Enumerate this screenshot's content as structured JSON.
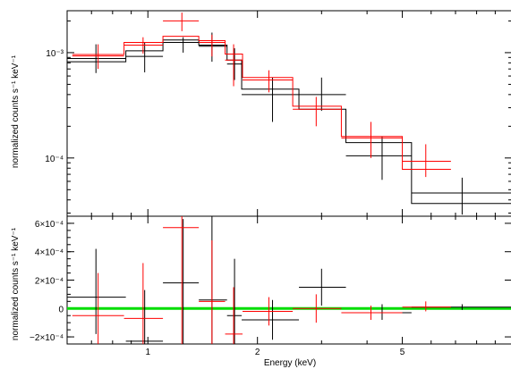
{
  "chart_data": [
    {
      "type": "scatter",
      "panel": "spectrum",
      "ylabel": "normalized counts s⁻¹ keV⁻¹",
      "xscale": "log",
      "yscale": "log",
      "xlim": [
        0.6,
        10.0
      ],
      "ylim": [
        2.8e-05,
        0.0025
      ],
      "y_ticks": [
        {
          "value": 0.001,
          "label": "10⁻³"
        },
        {
          "value": 0.0001,
          "label": "10⁻⁴"
        }
      ],
      "colors": {
        "series_1": "#000000",
        "series_2": "#ff0000"
      },
      "series": [
        {
          "points": [
            {
              "x": 0.72,
              "xlo": 0.6,
              "xhi": 0.87,
              "y": 0.00088,
              "ylo": 0.00064,
              "yhi": 0.0012
            },
            {
              "x": 0.98,
              "xlo": 0.87,
              "xhi": 1.1,
              "y": 0.00092,
              "ylo": 0.00065,
              "yhi": 0.00125
            },
            {
              "x": 1.25,
              "xlo": 1.1,
              "xhi": 1.38,
              "y": 0.00125,
              "ylo": 0.001,
              "yhi": 0.0014
            },
            {
              "x": 1.5,
              "xlo": 1.38,
              "xhi": 1.65,
              "y": 0.00115,
              "ylo": 0.00082,
              "yhi": 0.00155
            },
            {
              "x": 1.73,
              "xlo": 1.65,
              "xhi": 1.81,
              "y": 0.00078,
              "ylo": 0.00055,
              "yhi": 0.0011
            },
            {
              "x": 2.2,
              "xlo": 1.81,
              "xhi": 2.6,
              "y": 0.0004,
              "ylo": 0.00022,
              "yhi": 0.00058
            },
            {
              "x": 3.0,
              "xlo": 2.6,
              "xhi": 3.5,
              "y": 0.0004,
              "ylo": 0.00028,
              "yhi": 0.00058
            },
            {
              "x": 4.4,
              "xlo": 3.5,
              "xhi": 5.3,
              "y": 0.000105,
              "ylo": 6.2e-05,
              "yhi": 0.00016
            },
            {
              "x": 7.3,
              "xlo": 5.3,
              "xhi": 10.0,
              "y": 4.65e-05,
              "ylo": 2.9e-05,
              "yhi": 6.5e-05
            }
          ],
          "model_steps": [
            {
              "xlo": 0.6,
              "xhi": 0.87,
              "y": 0.00082
            },
            {
              "xlo": 0.87,
              "xhi": 1.1,
              "y": 0.00104
            },
            {
              "xlo": 1.1,
              "xhi": 1.38,
              "y": 0.00132
            },
            {
              "xlo": 1.38,
              "xhi": 1.65,
              "y": 0.00118
            },
            {
              "xlo": 1.65,
              "xhi": 1.81,
              "y": 0.00085
            },
            {
              "xlo": 1.81,
              "xhi": 2.6,
              "y": 0.00045
            },
            {
              "xlo": 2.6,
              "xhi": 3.5,
              "y": 0.00029
            },
            {
              "xlo": 3.5,
              "xhi": 5.3,
              "y": 0.00014
            },
            {
              "xlo": 5.3,
              "xhi": 10.0,
              "y": 3.7e-05
            }
          ]
        },
        {
          "points": [
            {
              "x": 0.73,
              "xlo": 0.62,
              "xhi": 0.86,
              "y": 0.00093,
              "ylo": 0.0007,
              "yhi": 0.0012
            },
            {
              "x": 0.97,
              "xlo": 0.86,
              "xhi": 1.1,
              "y": 0.00118,
              "ylo": 0.00098,
              "yhi": 0.0014
            },
            {
              "x": 1.24,
              "xlo": 1.1,
              "xhi": 1.38,
              "y": 0.002,
              "ylo": 0.0016,
              "yhi": 0.0024
            },
            {
              "x": 1.5,
              "xlo": 1.38,
              "xhi": 1.63,
              "y": 0.00125,
              "ylo": 0.00092,
              "yhi": 0.00148
            },
            {
              "x": 1.72,
              "xlo": 1.63,
              "xhi": 1.82,
              "y": 0.00085,
              "ylo": 0.00048,
              "yhi": 0.0012
            },
            {
              "x": 2.15,
              "xlo": 1.82,
              "xhi": 2.5,
              "y": 0.00055,
              "ylo": 0.00042,
              "yhi": 0.00068
            },
            {
              "x": 2.9,
              "xlo": 2.5,
              "xhi": 3.4,
              "y": 0.00029,
              "ylo": 0.0002,
              "yhi": 0.00038
            },
            {
              "x": 4.1,
              "xlo": 3.4,
              "xhi": 5.0,
              "y": 0.000155,
              "ylo": 0.0001,
              "yhi": 0.00022
            },
            {
              "x": 5.8,
              "xlo": 5.0,
              "xhi": 6.8,
              "y": 9.3e-05,
              "ylo": 6.6e-05,
              "yhi": 0.000135
            }
          ],
          "model_steps": [
            {
              "xlo": 0.62,
              "xhi": 0.86,
              "y": 0.00096
            },
            {
              "xlo": 0.86,
              "xhi": 1.1,
              "y": 0.00125
            },
            {
              "xlo": 1.1,
              "xhi": 1.38,
              "y": 0.00143
            },
            {
              "xlo": 1.38,
              "xhi": 1.63,
              "y": 0.0013
            },
            {
              "xlo": 1.63,
              "xhi": 1.82,
              "y": 0.00097
            },
            {
              "xlo": 1.82,
              "xhi": 2.5,
              "y": 0.00058
            },
            {
              "xlo": 2.5,
              "xhi": 3.4,
              "y": 0.00031
            },
            {
              "xlo": 3.4,
              "xhi": 5.0,
              "y": 0.00016
            },
            {
              "xlo": 5.0,
              "xhi": 6.8,
              "y": 7.8e-05
            }
          ]
        }
      ]
    },
    {
      "type": "scatter",
      "panel": "residuals",
      "xlabel": "Energy (keV)",
      "ylabel": "normalized counts s⁻¹ keV⁻¹",
      "xscale": "log",
      "yscale": "linear",
      "xlim": [
        0.6,
        10.0
      ],
      "ylim": [
        -0.00025,
        0.00065
      ],
      "x_ticks": [
        {
          "value": 1,
          "label": "1"
        },
        {
          "value": 2,
          "label": "2"
        },
        {
          "value": 5,
          "label": "5"
        }
      ],
      "y_ticks": [
        {
          "value": 0.0006,
          "label": "6×10⁻⁴"
        },
        {
          "value": 0.0004,
          "label": "4×10⁻⁴"
        },
        {
          "value": 0.0002,
          "label": "2×10⁻⁴"
        },
        {
          "value": 0,
          "label": "0"
        },
        {
          "value": -0.0002,
          "label": "−2×10⁻⁴"
        }
      ],
      "zero_line_color": "#00dd00",
      "colors": {
        "series_1": "#000000",
        "series_2": "#ff0000"
      },
      "series": [
        {
          "points": [
            {
              "x": 0.72,
              "xlo": 0.6,
              "xhi": 0.87,
              "y": 8e-05,
              "ylo": -0.00018,
              "yhi": 0.00042
            },
            {
              "x": 0.98,
              "xlo": 0.87,
              "xhi": 1.1,
              "y": -0.00023,
              "ylo": -0.00025,
              "yhi": 0.00013
            },
            {
              "x": 1.25,
              "xlo": 1.1,
              "xhi": 1.38,
              "y": 0.00018,
              "ylo": -0.00025,
              "yhi": 0.00063
            },
            {
              "x": 1.5,
              "xlo": 1.38,
              "xhi": 1.65,
              "y": 6e-05,
              "ylo": -0.00025,
              "yhi": 0.00065
            },
            {
              "x": 1.73,
              "xlo": 1.65,
              "xhi": 1.81,
              "y": -5e-05,
              "ylo": -0.00025,
              "yhi": 0.00035
            },
            {
              "x": 2.2,
              "xlo": 1.81,
              "xhi": 2.6,
              "y": -8e-05,
              "ylo": -0.00022,
              "yhi": 6e-05
            },
            {
              "x": 3.0,
              "xlo": 2.6,
              "xhi": 3.5,
              "y": 0.00015,
              "ylo": 2e-05,
              "yhi": 0.00028
            },
            {
              "x": 4.4,
              "xlo": 3.5,
              "xhi": 5.3,
              "y": -3e-05,
              "ylo": -8e-05,
              "yhi": 3e-05
            },
            {
              "x": 7.3,
              "xlo": 5.3,
              "xhi": 10.0,
              "y": 1e-05,
              "ylo": -1e-05,
              "yhi": 3e-05
            }
          ]
        },
        {
          "points": [
            {
              "x": 0.73,
              "xlo": 0.62,
              "xhi": 0.86,
              "y": -5e-05,
              "ylo": -0.00025,
              "yhi": 0.00025
            },
            {
              "x": 0.97,
              "xlo": 0.86,
              "xhi": 1.1,
              "y": -7e-05,
              "ylo": -0.00025,
              "yhi": 0.00032
            },
            {
              "x": 1.24,
              "xlo": 1.1,
              "xhi": 1.38,
              "y": 0.00057,
              "ylo": -0.00025,
              "yhi": 0.00065
            },
            {
              "x": 1.5,
              "xlo": 1.38,
              "xhi": 1.63,
              "y": 5e-05,
              "ylo": -0.00025,
              "yhi": 0.00048
            },
            {
              "x": 1.72,
              "xlo": 1.63,
              "xhi": 1.82,
              "y": -0.00018,
              "ylo": -0.00025,
              "yhi": 0.00015
            },
            {
              "x": 2.15,
              "xlo": 1.82,
              "xhi": 2.5,
              "y": -2e-05,
              "ylo": -0.00012,
              "yhi": 8e-05
            },
            {
              "x": 2.9,
              "xlo": 2.5,
              "xhi": 3.4,
              "y": 0.0,
              "ylo": -0.0001,
              "yhi": 0.0001
            },
            {
              "x": 4.1,
              "xlo": 3.4,
              "xhi": 5.0,
              "y": -3e-05,
              "ylo": -8e-05,
              "yhi": 2e-05
            },
            {
              "x": 5.8,
              "xlo": 5.0,
              "xhi": 6.8,
              "y": 1e-05,
              "ylo": -2e-05,
              "yhi": 5e-05
            }
          ]
        }
      ]
    }
  ]
}
